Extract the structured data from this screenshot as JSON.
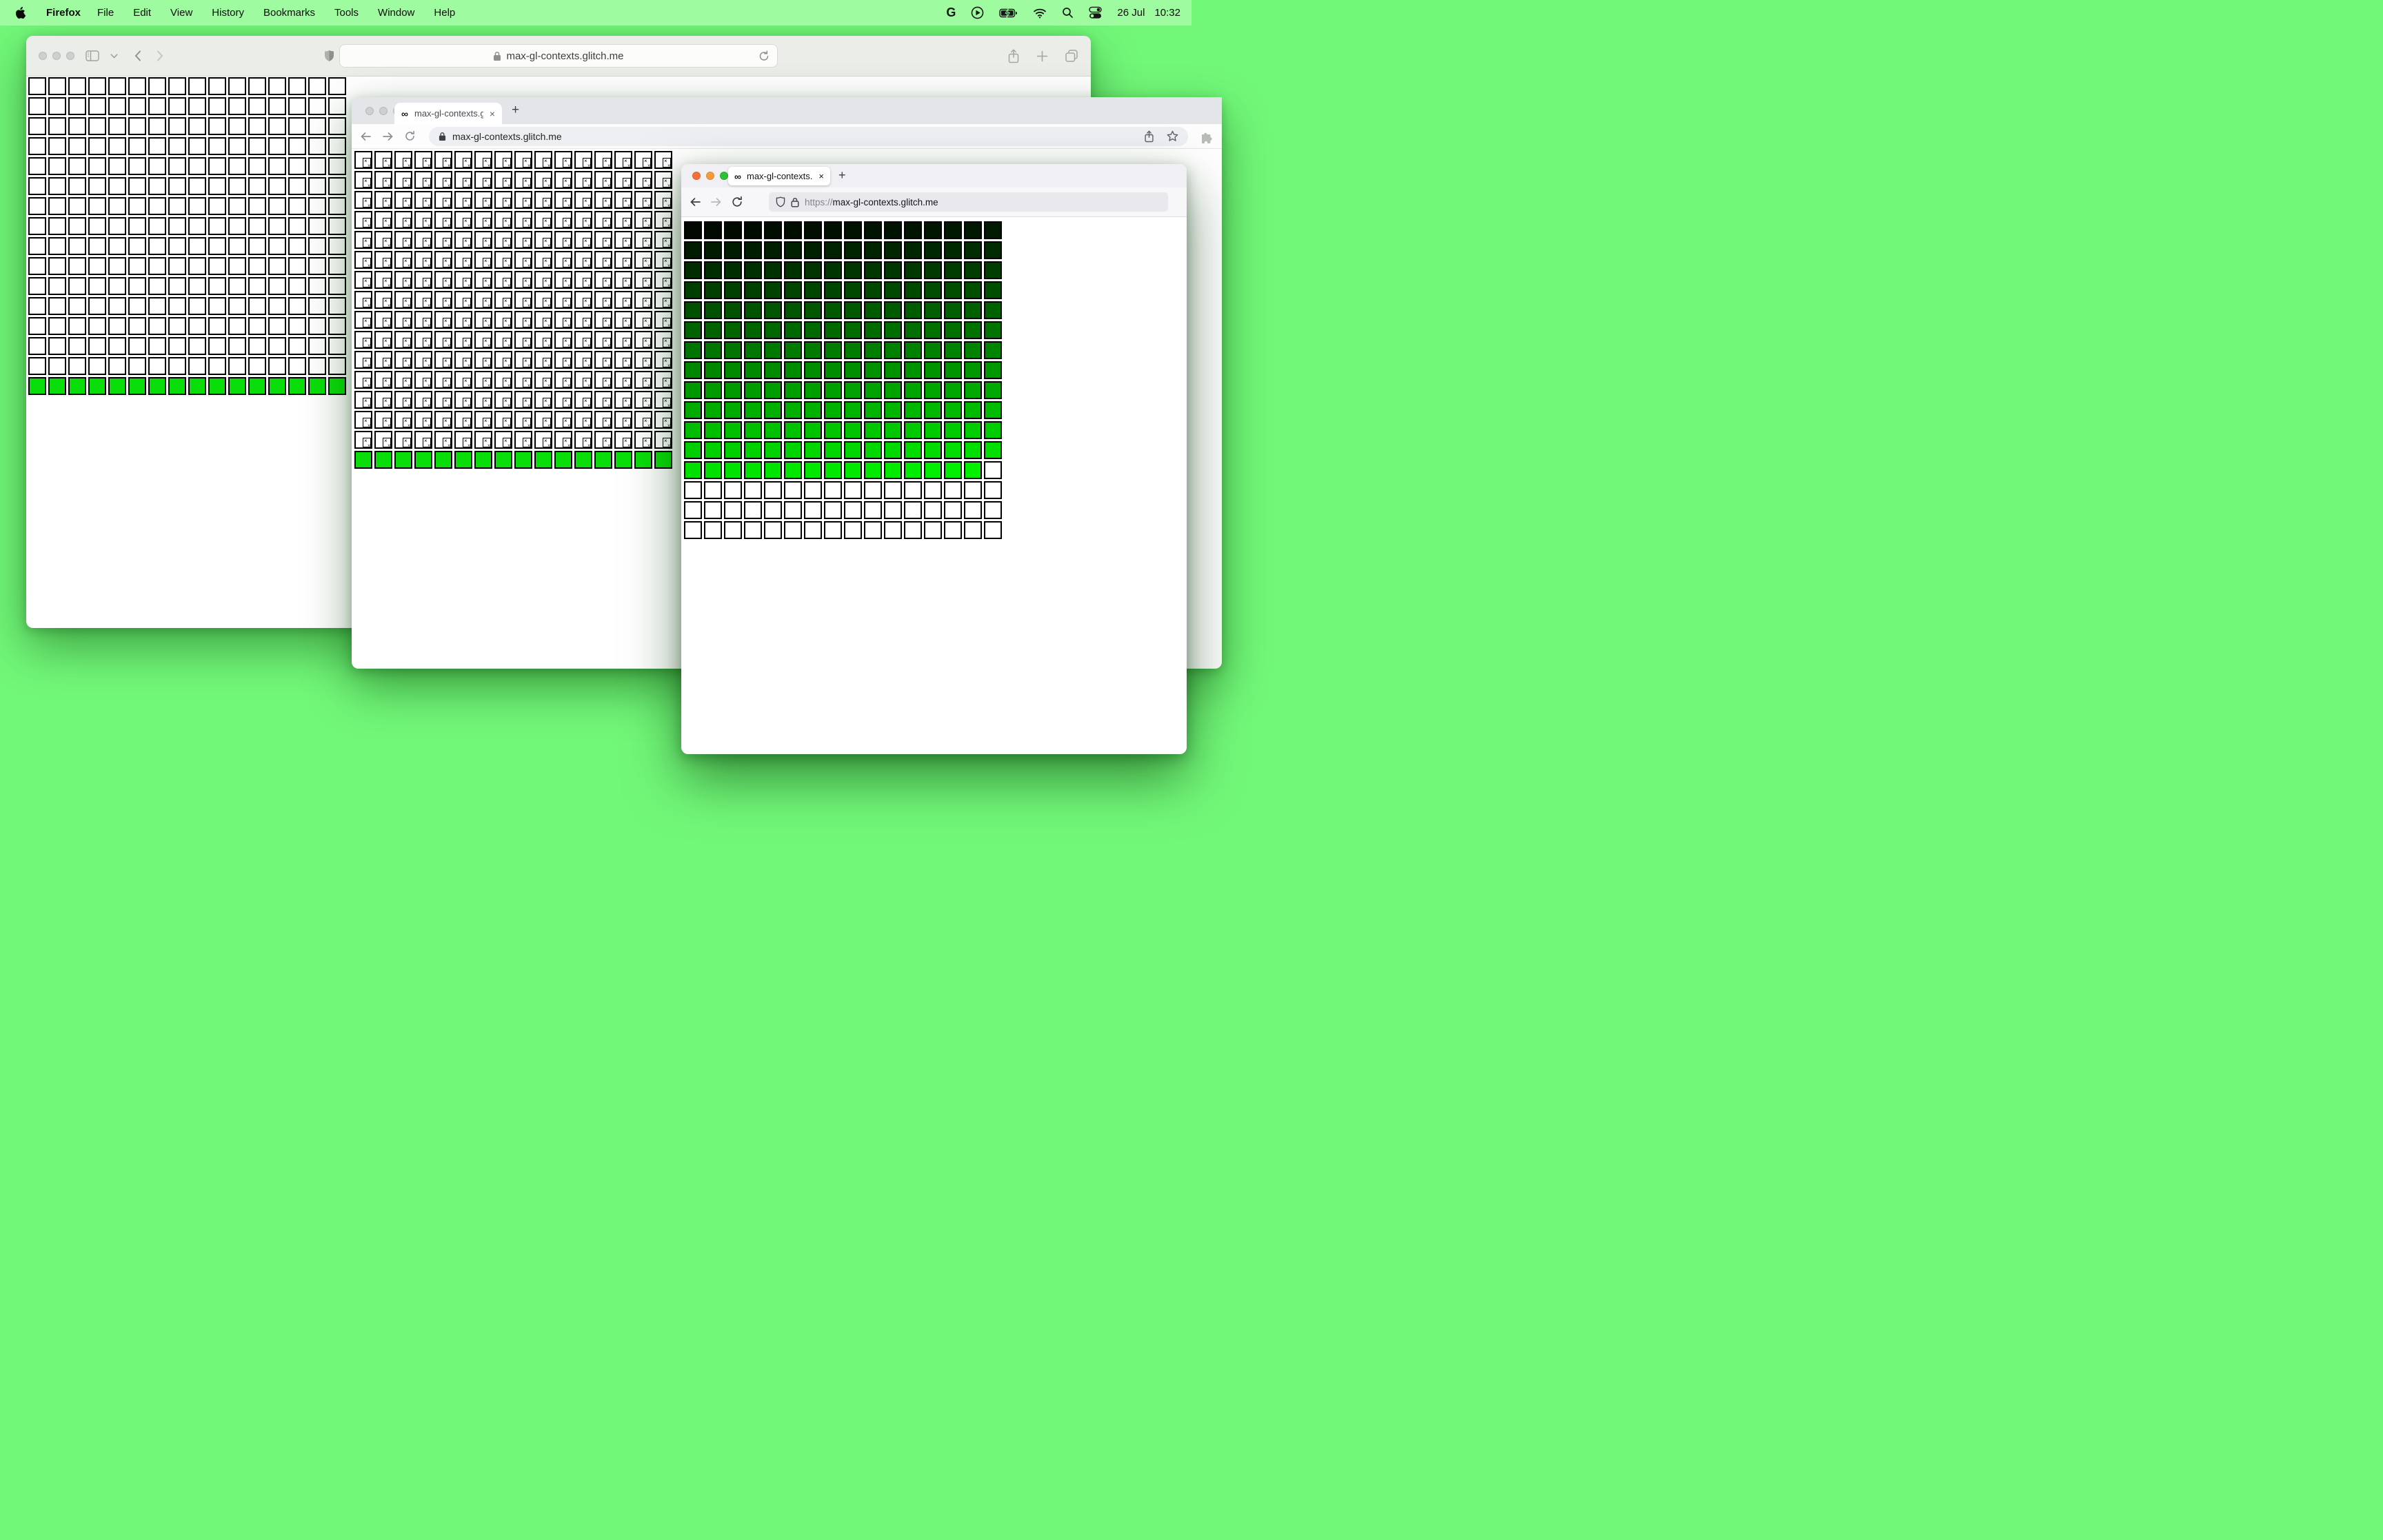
{
  "menu_bar": {
    "app_name": "Firefox",
    "menus": [
      "File",
      "Edit",
      "View",
      "History",
      "Bookmarks",
      "Tools",
      "Window",
      "Help"
    ],
    "status": {
      "google_label": "G",
      "date": "26 Jul",
      "time": "10:32"
    }
  },
  "site": {
    "favicon_char": "∞"
  },
  "windows": {
    "safari": {
      "url": "max-gl-contexts.glitch.me"
    },
    "chrome": {
      "tab_title": "max-gl-contexts.glitch.me",
      "url": "max-gl-contexts.glitch.me",
      "close_glyph": "×",
      "new_tab_glyph": "+"
    },
    "firefox": {
      "tab_title": "max-gl-contexts.glitch.me/",
      "url_scheme": "https://",
      "url_host": "max-gl-contexts.glitch.me",
      "close_glyph": "×",
      "new_tab_glyph": "+"
    }
  },
  "grids": {
    "safari": {
      "cols": 16,
      "rows": 16,
      "white_rows": 15,
      "green_rows": 1
    },
    "chrome": {
      "cols": 16,
      "rows": 16,
      "broken_rows": 15,
      "green_rows": 1
    },
    "firefox": {
      "cols": 16,
      "rows": 16,
      "gradient_filled_cells": 207,
      "white_cells": 49,
      "green_channel_min": 8,
      "green_channel_max": 240
    }
  },
  "colors": {
    "desktop": "#72f879",
    "menubar": "#9efb9f",
    "cell_green": "#0ade0a",
    "traffic_inactive": "#cfcfcf",
    "firefox_close": "#f4703a",
    "firefox_minimize": "#f49b3c",
    "firefox_zoom": "#2ec135"
  }
}
